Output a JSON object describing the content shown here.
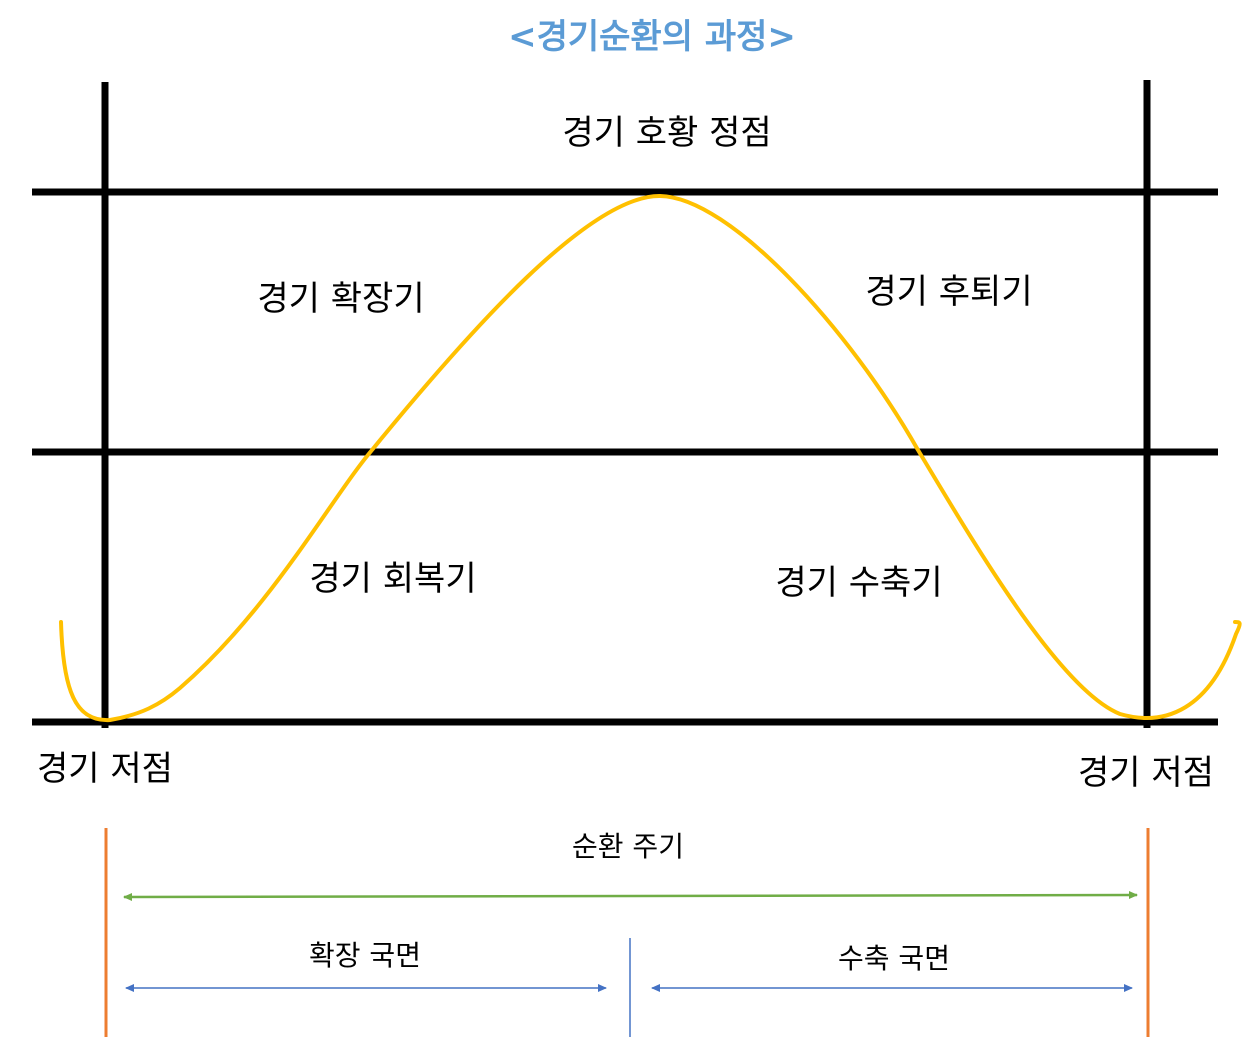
{
  "title": "<경기순환의 과정>",
  "phases": {
    "peak": "경기 호황 정점",
    "expansion": "경기 확장기",
    "recession": "경기 후퇴기",
    "recovery": "경기 회복기",
    "contraction": "경기 수축기"
  },
  "troughs": {
    "left": "경기 저점",
    "right": "경기 저점"
  },
  "spans": {
    "cycle": "순환 주기",
    "expansion_phase": "확장 국면",
    "contraction_phase": "수축 국면"
  },
  "colors": {
    "title": "#5b9bd5",
    "grid": "#000000",
    "curve": "#ffc000",
    "boundary": "#ed7d31",
    "cycle_arrow": "#70ad47",
    "phase_arrow": "#4472c4"
  }
}
